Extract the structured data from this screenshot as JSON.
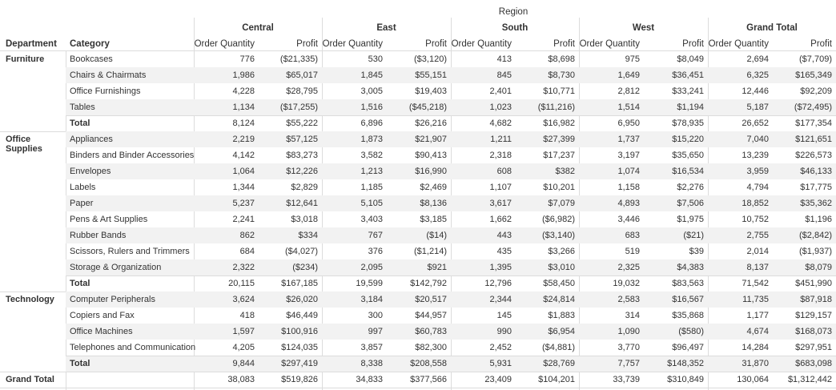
{
  "header": {
    "region_title": "Region",
    "department_label": "Department",
    "category_label": "Category",
    "regions": [
      "Central",
      "East",
      "South",
      "West",
      "Grand Total"
    ],
    "measures": [
      "Order Quantity",
      "Profit"
    ]
  },
  "chart_data": {
    "type": "table",
    "title": "",
    "column_group": "Region",
    "measures": [
      "Order Quantity",
      "Profit"
    ],
    "regions": [
      "Central",
      "East",
      "South",
      "West",
      "Grand Total"
    ],
    "departments": [
      {
        "name": "Furniture",
        "rows": [
          {
            "category": "Bookcases",
            "values": [
              "776",
              "($21,335)",
              "530",
              "($3,120)",
              "413",
              "$8,698",
              "975",
              "$8,049",
              "2,694",
              "($7,709)"
            ]
          },
          {
            "category": "Chairs & Chairmats",
            "values": [
              "1,986",
              "$65,017",
              "1,845",
              "$55,151",
              "845",
              "$8,730",
              "1,649",
              "$36,451",
              "6,325",
              "$165,349"
            ]
          },
          {
            "category": "Office Furnishings",
            "values": [
              "4,228",
              "$28,795",
              "3,005",
              "$19,403",
              "2,401",
              "$10,771",
              "2,812",
              "$33,241",
              "12,446",
              "$92,209"
            ]
          },
          {
            "category": "Tables",
            "values": [
              "1,134",
              "($17,255)",
              "1,516",
              "($45,218)",
              "1,023",
              "($11,216)",
              "1,514",
              "$1,194",
              "5,187",
              "($72,495)"
            ]
          },
          {
            "category": "Total",
            "total": true,
            "values": [
              "8,124",
              "$55,222",
              "6,896",
              "$26,216",
              "4,682",
              "$16,982",
              "6,950",
              "$78,935",
              "26,652",
              "$177,354"
            ]
          }
        ]
      },
      {
        "name": "Office Supplies",
        "rows": [
          {
            "category": "Appliances",
            "values": [
              "2,219",
              "$57,125",
              "1,873",
              "$21,907",
              "1,211",
              "$27,399",
              "1,737",
              "$15,220",
              "7,040",
              "$121,651"
            ]
          },
          {
            "category": "Binders and Binder Accessories",
            "values": [
              "4,142",
              "$83,273",
              "3,582",
              "$90,413",
              "2,318",
              "$17,237",
              "3,197",
              "$35,650",
              "13,239",
              "$226,573"
            ]
          },
          {
            "category": "Envelopes",
            "values": [
              "1,064",
              "$12,226",
              "1,213",
              "$16,990",
              "608",
              "$382",
              "1,074",
              "$16,534",
              "3,959",
              "$46,133"
            ]
          },
          {
            "category": "Labels",
            "values": [
              "1,344",
              "$2,829",
              "1,185",
              "$2,469",
              "1,107",
              "$10,201",
              "1,158",
              "$2,276",
              "4,794",
              "$17,775"
            ]
          },
          {
            "category": "Paper",
            "values": [
              "5,237",
              "$12,641",
              "5,105",
              "$8,136",
              "3,617",
              "$7,079",
              "4,893",
              "$7,506",
              "18,852",
              "$35,362"
            ]
          },
          {
            "category": "Pens & Art Supplies",
            "values": [
              "2,241",
              "$3,018",
              "3,403",
              "$3,185",
              "1,662",
              "($6,982)",
              "3,446",
              "$1,975",
              "10,752",
              "$1,196"
            ]
          },
          {
            "category": "Rubber Bands",
            "values": [
              "862",
              "$334",
              "767",
              "($14)",
              "443",
              "($3,140)",
              "683",
              "($21)",
              "2,755",
              "($2,842)"
            ]
          },
          {
            "category": "Scissors, Rulers and Trimmers",
            "values": [
              "684",
              "($4,027)",
              "376",
              "($1,214)",
              "435",
              "$3,266",
              "519",
              "$39",
              "2,014",
              "($1,937)"
            ]
          },
          {
            "category": "Storage & Organization",
            "values": [
              "2,322",
              "($234)",
              "2,095",
              "$921",
              "1,395",
              "$3,010",
              "2,325",
              "$4,383",
              "8,137",
              "$8,079"
            ]
          },
          {
            "category": "Total",
            "total": true,
            "values": [
              "20,115",
              "$167,185",
              "19,599",
              "$142,792",
              "12,796",
              "$58,450",
              "19,032",
              "$83,563",
              "71,542",
              "$451,990"
            ]
          }
        ]
      },
      {
        "name": "Technology",
        "rows": [
          {
            "category": "Computer Peripherals",
            "values": [
              "3,624",
              "$26,020",
              "3,184",
              "$20,517",
              "2,344",
              "$24,814",
              "2,583",
              "$16,567",
              "11,735",
              "$87,918"
            ]
          },
          {
            "category": "Copiers and Fax",
            "values": [
              "418",
              "$46,449",
              "300",
              "$44,957",
              "145",
              "$1,883",
              "314",
              "$35,868",
              "1,177",
              "$129,157"
            ]
          },
          {
            "category": "Office Machines",
            "values": [
              "1,597",
              "$100,916",
              "997",
              "$60,783",
              "990",
              "$6,954",
              "1,090",
              "($580)",
              "4,674",
              "$168,073"
            ]
          },
          {
            "category": "Telephones and Communication",
            "values": [
              "4,205",
              "$124,035",
              "3,857",
              "$82,300",
              "2,452",
              "($4,881)",
              "3,770",
              "$96,497",
              "14,284",
              "$297,951"
            ]
          },
          {
            "category": "Total",
            "total": true,
            "values": [
              "9,844",
              "$297,419",
              "8,338",
              "$208,558",
              "5,931",
              "$28,769",
              "7,757",
              "$148,352",
              "31,870",
              "$683,098"
            ]
          }
        ]
      }
    ],
    "grand_total": {
      "label": "Grand Total",
      "values": [
        "38,083",
        "$519,826",
        "34,833",
        "$377,566",
        "23,409",
        "$104,201",
        "33,739",
        "$310,849",
        "130,064",
        "$1,312,442"
      ]
    }
  }
}
